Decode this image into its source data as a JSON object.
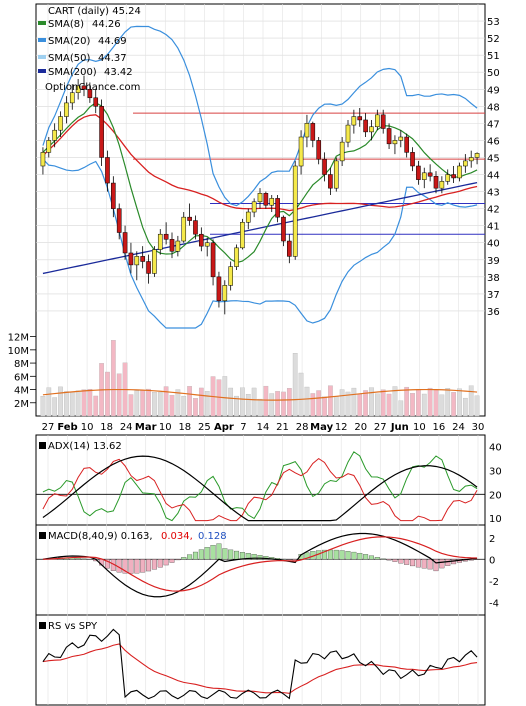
{
  "chart_data": [
    {
      "type": "candlestick",
      "panel": "price",
      "title": "CART (daily) 45.24",
      "watermark": "OptionChance.com",
      "ylim": [
        35,
        54
      ],
      "yticks": [
        36,
        37,
        38,
        39,
        40,
        41,
        42,
        43,
        44,
        45,
        46,
        47,
        48,
        49,
        50,
        51,
        52,
        53
      ],
      "x_labels": [
        "27",
        "Feb",
        "10",
        "18",
        "24",
        "Mar",
        "10",
        "18",
        "25",
        "Apr",
        "7",
        "14",
        "21",
        "28",
        "May",
        "12",
        "20",
        "27",
        "Jun",
        "10",
        "16",
        "24",
        "30"
      ],
      "legend": [
        {
          "name": "SMA(8)",
          "value": "44.26",
          "color": "#2a8a2a"
        },
        {
          "name": "SMA(20)",
          "value": "44.69",
          "color": "#3a8fdd"
        },
        {
          "name": "SMA(50)",
          "value": "44.37",
          "color": "#9fd0f0"
        },
        {
          "name": "SMA(200)",
          "value": "43.42",
          "color": "#1a2a9a"
        }
      ],
      "horizontal_levels": [
        47.6,
        44.9,
        42.3,
        40.5
      ],
      "level_colors": [
        "#d84040",
        "#d84040",
        "#3030c0",
        "#3030c0"
      ],
      "candles": [
        [
          44.5,
          45.6,
          44.0,
          45.3
        ],
        [
          45.3,
          46.2,
          45.0,
          46.0
        ],
        [
          46.0,
          47.0,
          45.6,
          46.6
        ],
        [
          46.6,
          47.7,
          46.2,
          47.4
        ],
        [
          47.4,
          48.6,
          47.0,
          48.2
        ],
        [
          48.2,
          49.3,
          47.8,
          48.8
        ],
        [
          48.8,
          49.6,
          48.4,
          49.2
        ],
        [
          49.2,
          49.8,
          48.6,
          49.0
        ],
        [
          49.0,
          49.4,
          48.2,
          48.5
        ],
        [
          48.5,
          49.0,
          47.6,
          48.0
        ],
        [
          48.0,
          48.4,
          44.5,
          45.0
        ],
        [
          45.0,
          45.4,
          43.0,
          43.5
        ],
        [
          43.5,
          43.9,
          41.5,
          42.0
        ],
        [
          42.0,
          42.3,
          40.2,
          40.6
        ],
        [
          40.6,
          41.0,
          39.0,
          39.4
        ],
        [
          39.4,
          40.0,
          38.2,
          38.7
        ],
        [
          38.7,
          39.5,
          37.8,
          39.2
        ],
        [
          39.2,
          39.8,
          38.5,
          38.9
        ],
        [
          38.9,
          39.3,
          37.6,
          38.2
        ],
        [
          38.2,
          39.8,
          38.0,
          39.6
        ],
        [
          39.6,
          40.8,
          39.3,
          40.5
        ],
        [
          40.5,
          41.2,
          39.9,
          40.2
        ],
        [
          40.2,
          40.6,
          39.1,
          39.5
        ],
        [
          39.5,
          40.4,
          39.2,
          40.1
        ],
        [
          40.1,
          41.8,
          40.0,
          41.5
        ],
        [
          41.5,
          42.3,
          41.0,
          41.3
        ],
        [
          41.3,
          41.6,
          40.2,
          40.5
        ],
        [
          40.5,
          40.9,
          39.5,
          39.8
        ],
        [
          39.8,
          40.3,
          39.2,
          40.0
        ],
        [
          40.0,
          40.2,
          37.5,
          38.0
        ],
        [
          38.0,
          38.3,
          36.2,
          36.6
        ],
        [
          36.6,
          37.8,
          35.8,
          37.5
        ],
        [
          37.5,
          38.9,
          37.2,
          38.6
        ],
        [
          38.6,
          39.9,
          38.4,
          39.7
        ],
        [
          39.7,
          41.4,
          39.6,
          41.2
        ],
        [
          41.2,
          42.0,
          40.8,
          41.8
        ],
        [
          41.8,
          42.6,
          41.5,
          42.4
        ],
        [
          42.4,
          43.2,
          42.0,
          42.9
        ],
        [
          42.9,
          43.0,
          42.0,
          42.2
        ],
        [
          42.2,
          42.8,
          41.8,
          42.6
        ],
        [
          42.6,
          42.8,
          41.2,
          41.5
        ],
        [
          41.5,
          41.6,
          39.8,
          40.1
        ],
        [
          40.1,
          40.5,
          38.8,
          39.2
        ],
        [
          39.2,
          44.8,
          39.0,
          44.5
        ],
        [
          44.5,
          46.6,
          44.0,
          46.2
        ],
        [
          46.2,
          47.5,
          45.6,
          47.0
        ],
        [
          47.0,
          47.1,
          45.6,
          46.0
        ],
        [
          46.0,
          46.2,
          44.6,
          44.9
        ],
        [
          44.9,
          45.3,
          43.6,
          44.0
        ],
        [
          44.0,
          44.4,
          42.8,
          43.2
        ],
        [
          43.2,
          45.0,
          43.0,
          44.8
        ],
        [
          44.8,
          46.2,
          44.5,
          45.9
        ],
        [
          45.9,
          47.2,
          45.6,
          46.9
        ],
        [
          46.9,
          47.8,
          46.4,
          47.4
        ],
        [
          47.4,
          47.9,
          46.8,
          47.2
        ],
        [
          47.2,
          47.6,
          46.2,
          46.5
        ],
        [
          46.5,
          47.2,
          46.0,
          46.8
        ],
        [
          46.8,
          47.8,
          46.6,
          47.5
        ],
        [
          47.5,
          47.8,
          46.4,
          46.7
        ],
        [
          46.7,
          47.0,
          45.5,
          45.8
        ],
        [
          45.8,
          46.3,
          45.2,
          46.0
        ],
        [
          46.0,
          46.6,
          45.6,
          46.2
        ],
        [
          46.2,
          46.4,
          45.0,
          45.3
        ],
        [
          45.3,
          45.6,
          44.2,
          44.5
        ],
        [
          44.5,
          44.8,
          43.4,
          43.7
        ],
        [
          43.7,
          44.4,
          43.2,
          44.1
        ],
        [
          44.1,
          44.6,
          43.6,
          43.9
        ],
        [
          43.9,
          44.2,
          42.9,
          43.2
        ],
        [
          43.2,
          43.9,
          42.9,
          43.6
        ],
        [
          43.6,
          44.3,
          43.4,
          44.0
        ],
        [
          44.0,
          44.5,
          43.5,
          43.8
        ],
        [
          43.8,
          44.7,
          43.6,
          44.5
        ],
        [
          44.5,
          45.2,
          44.1,
          44.8
        ],
        [
          44.8,
          45.4,
          44.4,
          45.0
        ],
        [
          45.0,
          45.3,
          44.6,
          45.24
        ]
      ]
    },
    {
      "type": "bar",
      "panel": "volume",
      "yticks": [
        "12M",
        "10M",
        "8M",
        "6M",
        "4M",
        "2M"
      ],
      "ytick_values": [
        12,
        10,
        8,
        6,
        4,
        2
      ],
      "ylim": [
        0,
        13
      ],
      "avg_color": "#e07020"
    },
    {
      "type": "line",
      "panel": "adx",
      "label": "ADX(14) 13.62",
      "ylim": [
        8,
        44
      ],
      "yticks": [
        10,
        20,
        30,
        40
      ],
      "ref_level": 20
    },
    {
      "type": "bar",
      "panel": "macd",
      "label": "MACD(8,40,9) 0.163,",
      "signal_label": "0.034,",
      "hist_label": "0.128",
      "signal_color": "#e00000",
      "hist_color": "#2050c0",
      "ylim": [
        -5,
        3
      ],
      "yticks": [
        2,
        0,
        -2,
        -4
      ]
    },
    {
      "type": "line",
      "panel": "rs",
      "label": "RS vs SPY"
    }
  ]
}
